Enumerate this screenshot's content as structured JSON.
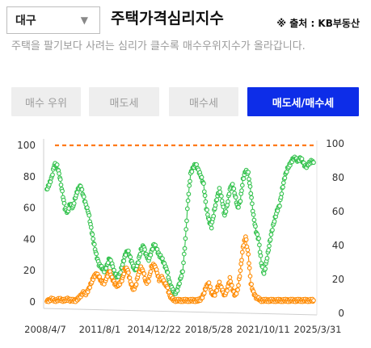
{
  "region_select": {
    "value": "대구"
  },
  "title": "주택가격심리지수",
  "source": "※ 출처 : KB부동산",
  "description": "주택을 팔기보다 사려는 심리가 클수록 매수우위지수가 올라갑니다.",
  "buttons": [
    {
      "label": "매수 우위",
      "active": false
    },
    {
      "label": "매도세",
      "active": false
    },
    {
      "label": "매수세",
      "active": false
    },
    {
      "label": "매도세/매수세",
      "active": true
    }
  ],
  "colors": {
    "green": "#33c24d",
    "orange": "#ff8a00",
    "dashed": "#ff7a1a",
    "active_button": "#0d2de8"
  },
  "chart_data": {
    "type": "line",
    "x_start": "2008-04-07",
    "x_end": "2025-03-31",
    "x_tick_labels": [
      "2008/4/7",
      "2011/8/1",
      "2014/12/22",
      "2018/5/28",
      "2021/10/11",
      "2025/3/31"
    ],
    "y_left": {
      "ylim": [
        0,
        100
      ],
      "ticks": [
        0,
        20,
        40,
        60,
        80,
        100
      ]
    },
    "y_right": {
      "ylim": [
        0,
        100
      ],
      "ticks": [
        0,
        20,
        40,
        60,
        80,
        100
      ]
    },
    "reference_line": {
      "value": 100,
      "style": "dashed",
      "color": "#ff7a1a"
    },
    "grid": false,
    "markers": "hollow-circle",
    "series": [
      {
        "color": "#33c24d",
        "axis": "left",
        "points": [
          [
            "2008-04-07",
            72
          ],
          [
            "2008-06-01",
            75
          ],
          [
            "2008-08-01",
            80
          ],
          [
            "2008-10-01",
            88
          ],
          [
            "2008-12-01",
            87
          ],
          [
            "2009-02-01",
            80
          ],
          [
            "2009-04-01",
            70
          ],
          [
            "2009-06-01",
            60
          ],
          [
            "2009-08-01",
            57
          ],
          [
            "2009-10-01",
            63
          ],
          [
            "2009-12-01",
            60
          ],
          [
            "2010-02-01",
            67
          ],
          [
            "2010-04-01",
            72
          ],
          [
            "2010-06-01",
            74
          ],
          [
            "2010-08-01",
            68
          ],
          [
            "2010-10-01",
            62
          ],
          [
            "2010-12-01",
            57
          ],
          [
            "2011-02-01",
            47
          ],
          [
            "2011-04-01",
            38
          ],
          [
            "2011-06-01",
            30
          ],
          [
            "2011-08-01",
            24
          ],
          [
            "2011-10-01",
            22
          ],
          [
            "2011-12-01",
            20
          ],
          [
            "2012-02-01",
            23
          ],
          [
            "2012-04-01",
            28
          ],
          [
            "2012-06-01",
            24
          ],
          [
            "2012-08-01",
            18
          ],
          [
            "2012-10-01",
            16
          ],
          [
            "2012-12-01",
            18
          ],
          [
            "2013-02-01",
            24
          ],
          [
            "2013-04-01",
            30
          ],
          [
            "2013-06-01",
            33
          ],
          [
            "2013-08-01",
            28
          ],
          [
            "2013-10-01",
            23
          ],
          [
            "2013-12-01",
            20
          ],
          [
            "2014-02-01",
            26
          ],
          [
            "2014-04-01",
            33
          ],
          [
            "2014-06-01",
            36
          ],
          [
            "2014-08-01",
            30
          ],
          [
            "2014-10-01",
            27
          ],
          [
            "2014-12-01",
            32
          ],
          [
            "2015-02-01",
            37
          ],
          [
            "2015-04-01",
            34
          ],
          [
            "2015-06-01",
            30
          ],
          [
            "2015-08-01",
            28
          ],
          [
            "2015-10-01",
            24
          ],
          [
            "2015-12-01",
            20
          ],
          [
            "2016-02-01",
            12
          ],
          [
            "2016-04-01",
            8
          ],
          [
            "2016-06-01",
            5
          ],
          [
            "2016-08-01",
            8
          ],
          [
            "2016-10-01",
            14
          ],
          [
            "2016-12-01",
            20
          ],
          [
            "2017-02-01",
            40
          ],
          [
            "2017-04-01",
            65
          ],
          [
            "2017-06-01",
            82
          ],
          [
            "2017-08-01",
            86
          ],
          [
            "2017-10-01",
            88
          ],
          [
            "2017-12-01",
            84
          ],
          [
            "2018-02-01",
            80
          ],
          [
            "2018-04-01",
            75
          ],
          [
            "2018-06-01",
            60
          ],
          [
            "2018-08-01",
            52
          ],
          [
            "2018-10-01",
            48
          ],
          [
            "2018-12-01",
            58
          ],
          [
            "2019-02-01",
            66
          ],
          [
            "2019-04-01",
            72
          ],
          [
            "2019-06-01",
            65
          ],
          [
            "2019-08-01",
            55
          ],
          [
            "2019-10-01",
            62
          ],
          [
            "2019-12-01",
            72
          ],
          [
            "2020-02-01",
            75
          ],
          [
            "2020-04-01",
            68
          ],
          [
            "2020-06-01",
            60
          ],
          [
            "2020-08-01",
            65
          ],
          [
            "2020-10-01",
            78
          ],
          [
            "2020-12-01",
            84
          ],
          [
            "2021-02-01",
            82
          ],
          [
            "2021-04-01",
            70
          ],
          [
            "2021-06-01",
            55
          ],
          [
            "2021-08-01",
            45
          ],
          [
            "2021-10-01",
            40
          ],
          [
            "2021-12-01",
            25
          ],
          [
            "2022-02-01",
            18
          ],
          [
            "2022-04-01",
            26
          ],
          [
            "2022-06-01",
            36
          ],
          [
            "2022-08-01",
            45
          ],
          [
            "2022-10-01",
            52
          ],
          [
            "2022-12-01",
            58
          ],
          [
            "2023-02-01",
            62
          ],
          [
            "2023-04-01",
            72
          ],
          [
            "2023-06-01",
            80
          ],
          [
            "2023-08-01",
            85
          ],
          [
            "2023-10-01",
            88
          ],
          [
            "2023-12-01",
            91
          ],
          [
            "2024-02-01",
            92
          ],
          [
            "2024-04-01",
            90
          ],
          [
            "2024-06-01",
            92
          ],
          [
            "2024-08-01",
            89
          ],
          [
            "2024-10-01",
            86
          ],
          [
            "2024-12-01",
            88
          ],
          [
            "2025-02-01",
            90
          ],
          [
            "2025-03-31",
            89
          ]
        ]
      },
      {
        "color": "#ff8a00",
        "axis": "left",
        "points": [
          [
            "2008-04-07",
            1
          ],
          [
            "2008-06-01",
            1
          ],
          [
            "2008-08-01",
            2
          ],
          [
            "2008-10-01",
            1
          ],
          [
            "2008-12-01",
            1
          ],
          [
            "2009-02-01",
            2
          ],
          [
            "2009-04-01",
            1
          ],
          [
            "2009-06-01",
            1
          ],
          [
            "2009-08-01",
            2
          ],
          [
            "2009-10-01",
            1
          ],
          [
            "2009-12-01",
            1
          ],
          [
            "2010-02-01",
            1
          ],
          [
            "2010-04-01",
            2
          ],
          [
            "2010-06-01",
            4
          ],
          [
            "2010-08-01",
            6
          ],
          [
            "2010-10-01",
            5
          ],
          [
            "2010-12-01",
            8
          ],
          [
            "2011-02-01",
            12
          ],
          [
            "2011-04-01",
            16
          ],
          [
            "2011-06-01",
            18
          ],
          [
            "2011-08-01",
            16
          ],
          [
            "2011-10-01",
            13
          ],
          [
            "2011-12-01",
            12
          ],
          [
            "2012-02-01",
            16
          ],
          [
            "2012-04-01",
            20
          ],
          [
            "2012-06-01",
            15
          ],
          [
            "2012-08-01",
            12
          ],
          [
            "2012-10-01",
            10
          ],
          [
            "2012-12-01",
            12
          ],
          [
            "2013-02-01",
            15
          ],
          [
            "2013-04-01",
            22
          ],
          [
            "2013-06-01",
            20
          ],
          [
            "2013-08-01",
            13
          ],
          [
            "2013-10-01",
            8
          ],
          [
            "2013-12-01",
            10
          ],
          [
            "2014-02-01",
            18
          ],
          [
            "2014-04-01",
            22
          ],
          [
            "2014-06-01",
            19
          ],
          [
            "2014-08-01",
            12
          ],
          [
            "2014-10-01",
            14
          ],
          [
            "2014-12-01",
            22
          ],
          [
            "2015-02-01",
            24
          ],
          [
            "2015-04-01",
            20
          ],
          [
            "2015-06-01",
            14
          ],
          [
            "2015-08-01",
            16
          ],
          [
            "2015-10-01",
            12
          ],
          [
            "2015-12-01",
            10
          ],
          [
            "2016-02-01",
            4
          ],
          [
            "2016-04-01",
            2
          ],
          [
            "2016-06-01",
            1
          ],
          [
            "2016-08-01",
            1
          ],
          [
            "2016-10-01",
            1
          ],
          [
            "2016-12-01",
            1
          ],
          [
            "2017-02-01",
            1
          ],
          [
            "2017-04-01",
            1
          ],
          [
            "2017-06-01",
            1
          ],
          [
            "2017-08-01",
            1
          ],
          [
            "2017-10-01",
            1
          ],
          [
            "2017-12-01",
            1
          ],
          [
            "2018-02-01",
            2
          ],
          [
            "2018-04-01",
            5
          ],
          [
            "2018-06-01",
            10
          ],
          [
            "2018-08-01",
            12
          ],
          [
            "2018-10-01",
            6
          ],
          [
            "2018-12-01",
            4
          ],
          [
            "2019-02-01",
            8
          ],
          [
            "2019-04-01",
            12
          ],
          [
            "2019-06-01",
            8
          ],
          [
            "2019-08-01",
            4
          ],
          [
            "2019-10-01",
            8
          ],
          [
            "2019-12-01",
            15
          ],
          [
            "2020-02-01",
            8
          ],
          [
            "2020-04-01",
            4
          ],
          [
            "2020-06-01",
            8
          ],
          [
            "2020-08-01",
            20
          ],
          [
            "2020-10-01",
            35
          ],
          [
            "2020-12-01",
            42
          ],
          [
            "2021-02-01",
            30
          ],
          [
            "2021-04-01",
            12
          ],
          [
            "2021-06-01",
            6
          ],
          [
            "2021-08-01",
            3
          ],
          [
            "2021-10-01",
            2
          ],
          [
            "2021-12-01",
            1
          ],
          [
            "2022-02-01",
            1
          ],
          [
            "2022-04-01",
            1
          ],
          [
            "2022-06-01",
            1
          ],
          [
            "2022-08-01",
            1
          ],
          [
            "2022-10-01",
            1
          ],
          [
            "2022-12-01",
            1
          ],
          [
            "2023-02-01",
            1
          ],
          [
            "2023-04-01",
            1
          ],
          [
            "2023-06-01",
            1
          ],
          [
            "2023-08-01",
            1
          ],
          [
            "2023-10-01",
            1
          ],
          [
            "2023-12-01",
            1
          ],
          [
            "2024-02-01",
            1
          ],
          [
            "2024-04-01",
            1
          ],
          [
            "2024-06-01",
            1
          ],
          [
            "2024-08-01",
            1
          ],
          [
            "2024-10-01",
            1
          ],
          [
            "2024-12-01",
            1
          ],
          [
            "2025-02-01",
            1
          ],
          [
            "2025-03-31",
            1
          ]
        ]
      }
    ]
  }
}
